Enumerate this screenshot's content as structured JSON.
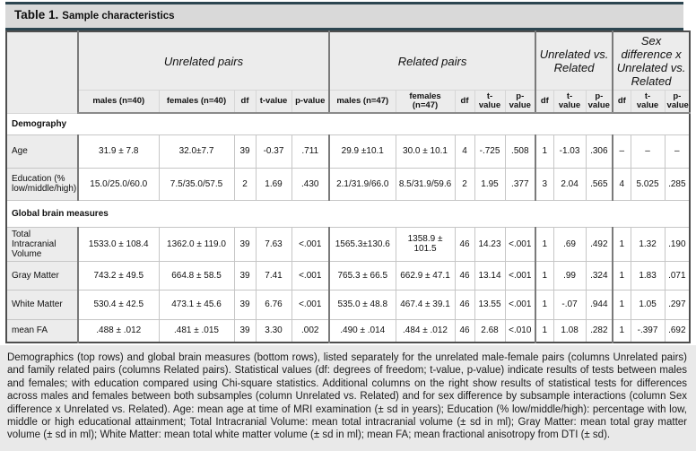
{
  "page": {
    "title_bold": "Table 1.",
    "title_rest": "Sample characteristics"
  },
  "table": {
    "groups": [
      {
        "label": "Unrelated pairs",
        "cols": 5
      },
      {
        "label": "Related pairs",
        "cols": 5
      },
      {
        "label": "Unrelated vs. Related",
        "cols": 3
      },
      {
        "label": "Sex difference x Unrelated vs. Related",
        "cols": 3
      }
    ],
    "subheaders": [
      "males (n=40)",
      "females (n=40)",
      "df",
      "t-value",
      "p-value",
      "males (n=47)",
      "females\n(n=47)",
      "df",
      "t-\nvalue",
      "p-\nvalue",
      "df",
      "t-\nvalue",
      "p-\nvalue",
      "df",
      "t-\nvalue",
      "p-\nvalue"
    ],
    "sections": [
      {
        "label": "Demography",
        "rows": [
          {
            "label": "Age",
            "row_class": "r-age",
            "cells": [
              "31.9 ± 7.8",
              "32.0±7.7",
              "39",
              "-0.37",
              ".711",
              "29.9 ±10.1",
              "30.0 ± 10.1",
              "4",
              "-.725",
              ".508",
              "1",
              "-1.03",
              ".306",
              "–",
              "–",
              "–"
            ]
          },
          {
            "label": "Education (% low/middle/high)",
            "row_class": "r-edu",
            "cells": [
              "15.0/25.0/60.0",
              "7.5/35.0/57.5",
              "2",
              "1.69",
              ".430",
              "2.1/31.9/66.0",
              "8.5/31.9/59.6",
              "2",
              "1.95",
              ".377",
              "3",
              "2.04",
              ".565",
              "4",
              "5.025",
              ".285"
            ]
          }
        ],
        "section_class": "s-demo"
      },
      {
        "label": "Global brain measures",
        "rows": [
          {
            "label": "Total Intracranial Volume",
            "row_class": "r-tiv",
            "cells": [
              "1533.0 ± 108.4",
              "1362.0 ± 119.0",
              "39",
              "7.63",
              "<.001",
              "1565.3±130.6",
              "1358.9 ± 101.5",
              "46",
              "14.23",
              "<.001",
              "1",
              ".69",
              ".492",
              "1",
              "1.32",
              ".190"
            ]
          },
          {
            "label": "Gray Matter",
            "row_class": "r-gm",
            "cells": [
              "743.2 ± 49.5",
              "664.8 ± 58.5",
              "39",
              "7.41",
              "<.001",
              "765.3 ± 66.5",
              "662.9 ± 47.1",
              "46",
              "13.14",
              "<.001",
              "1",
              ".99",
              ".324",
              "1",
              "1.83",
              ".071"
            ]
          },
          {
            "label": "White Matter",
            "row_class": "r-wm",
            "cells": [
              "530.4 ± 42.5",
              "473.1 ± 45.6",
              "39",
              "6.76",
              "<.001",
              "535.0 ± 48.8",
              "467.4 ± 39.1",
              "46",
              "13.55",
              "<.001",
              "1",
              "-.07",
              ".944",
              "1",
              "1.05",
              ".297"
            ]
          },
          {
            "label": "mean FA",
            "row_class": "r-fa",
            "cells": [
              ".488 ± .012",
              ".481 ± .015",
              "39",
              "3.30",
              ".002",
              ".490 ± .014",
              ".484 ± .012",
              "46",
              "2.68",
              "<.010",
              "1",
              "1.08",
              ".282",
              "1",
              "-.397",
              ".692"
            ]
          }
        ],
        "section_class": "s-brain"
      }
    ]
  },
  "caption": "Demographics (top rows) and global brain measures (bottom rows), listed separately for the unrelated male-female pairs (columns Unrelated pairs) and family related pairs (columns Related pairs). Statistical values (df: degrees of freedom; t-value, p-value) indicate results of tests between males and females; with education compared using Chi-square statistics. Additional columns on the right show results of statistical tests for differences across males and females between both subsamples (column Unrelated vs. Related) and for sex difference by subsample interactions (column Sex difference x Unrelated vs. Related). Age: mean age at time of MRI examination (± sd in years); Education (% low/middle/high): percentage with low, middle or high educational attainment; Total Intracranial Volume: mean total intracranial volume (± sd in ml); Gray Matter: mean total gray matter volume (± sd in ml); White Matter: mean total white matter volume (± sd in ml); mean FA; mean fractional anisotropy from DTI (± sd)."
}
